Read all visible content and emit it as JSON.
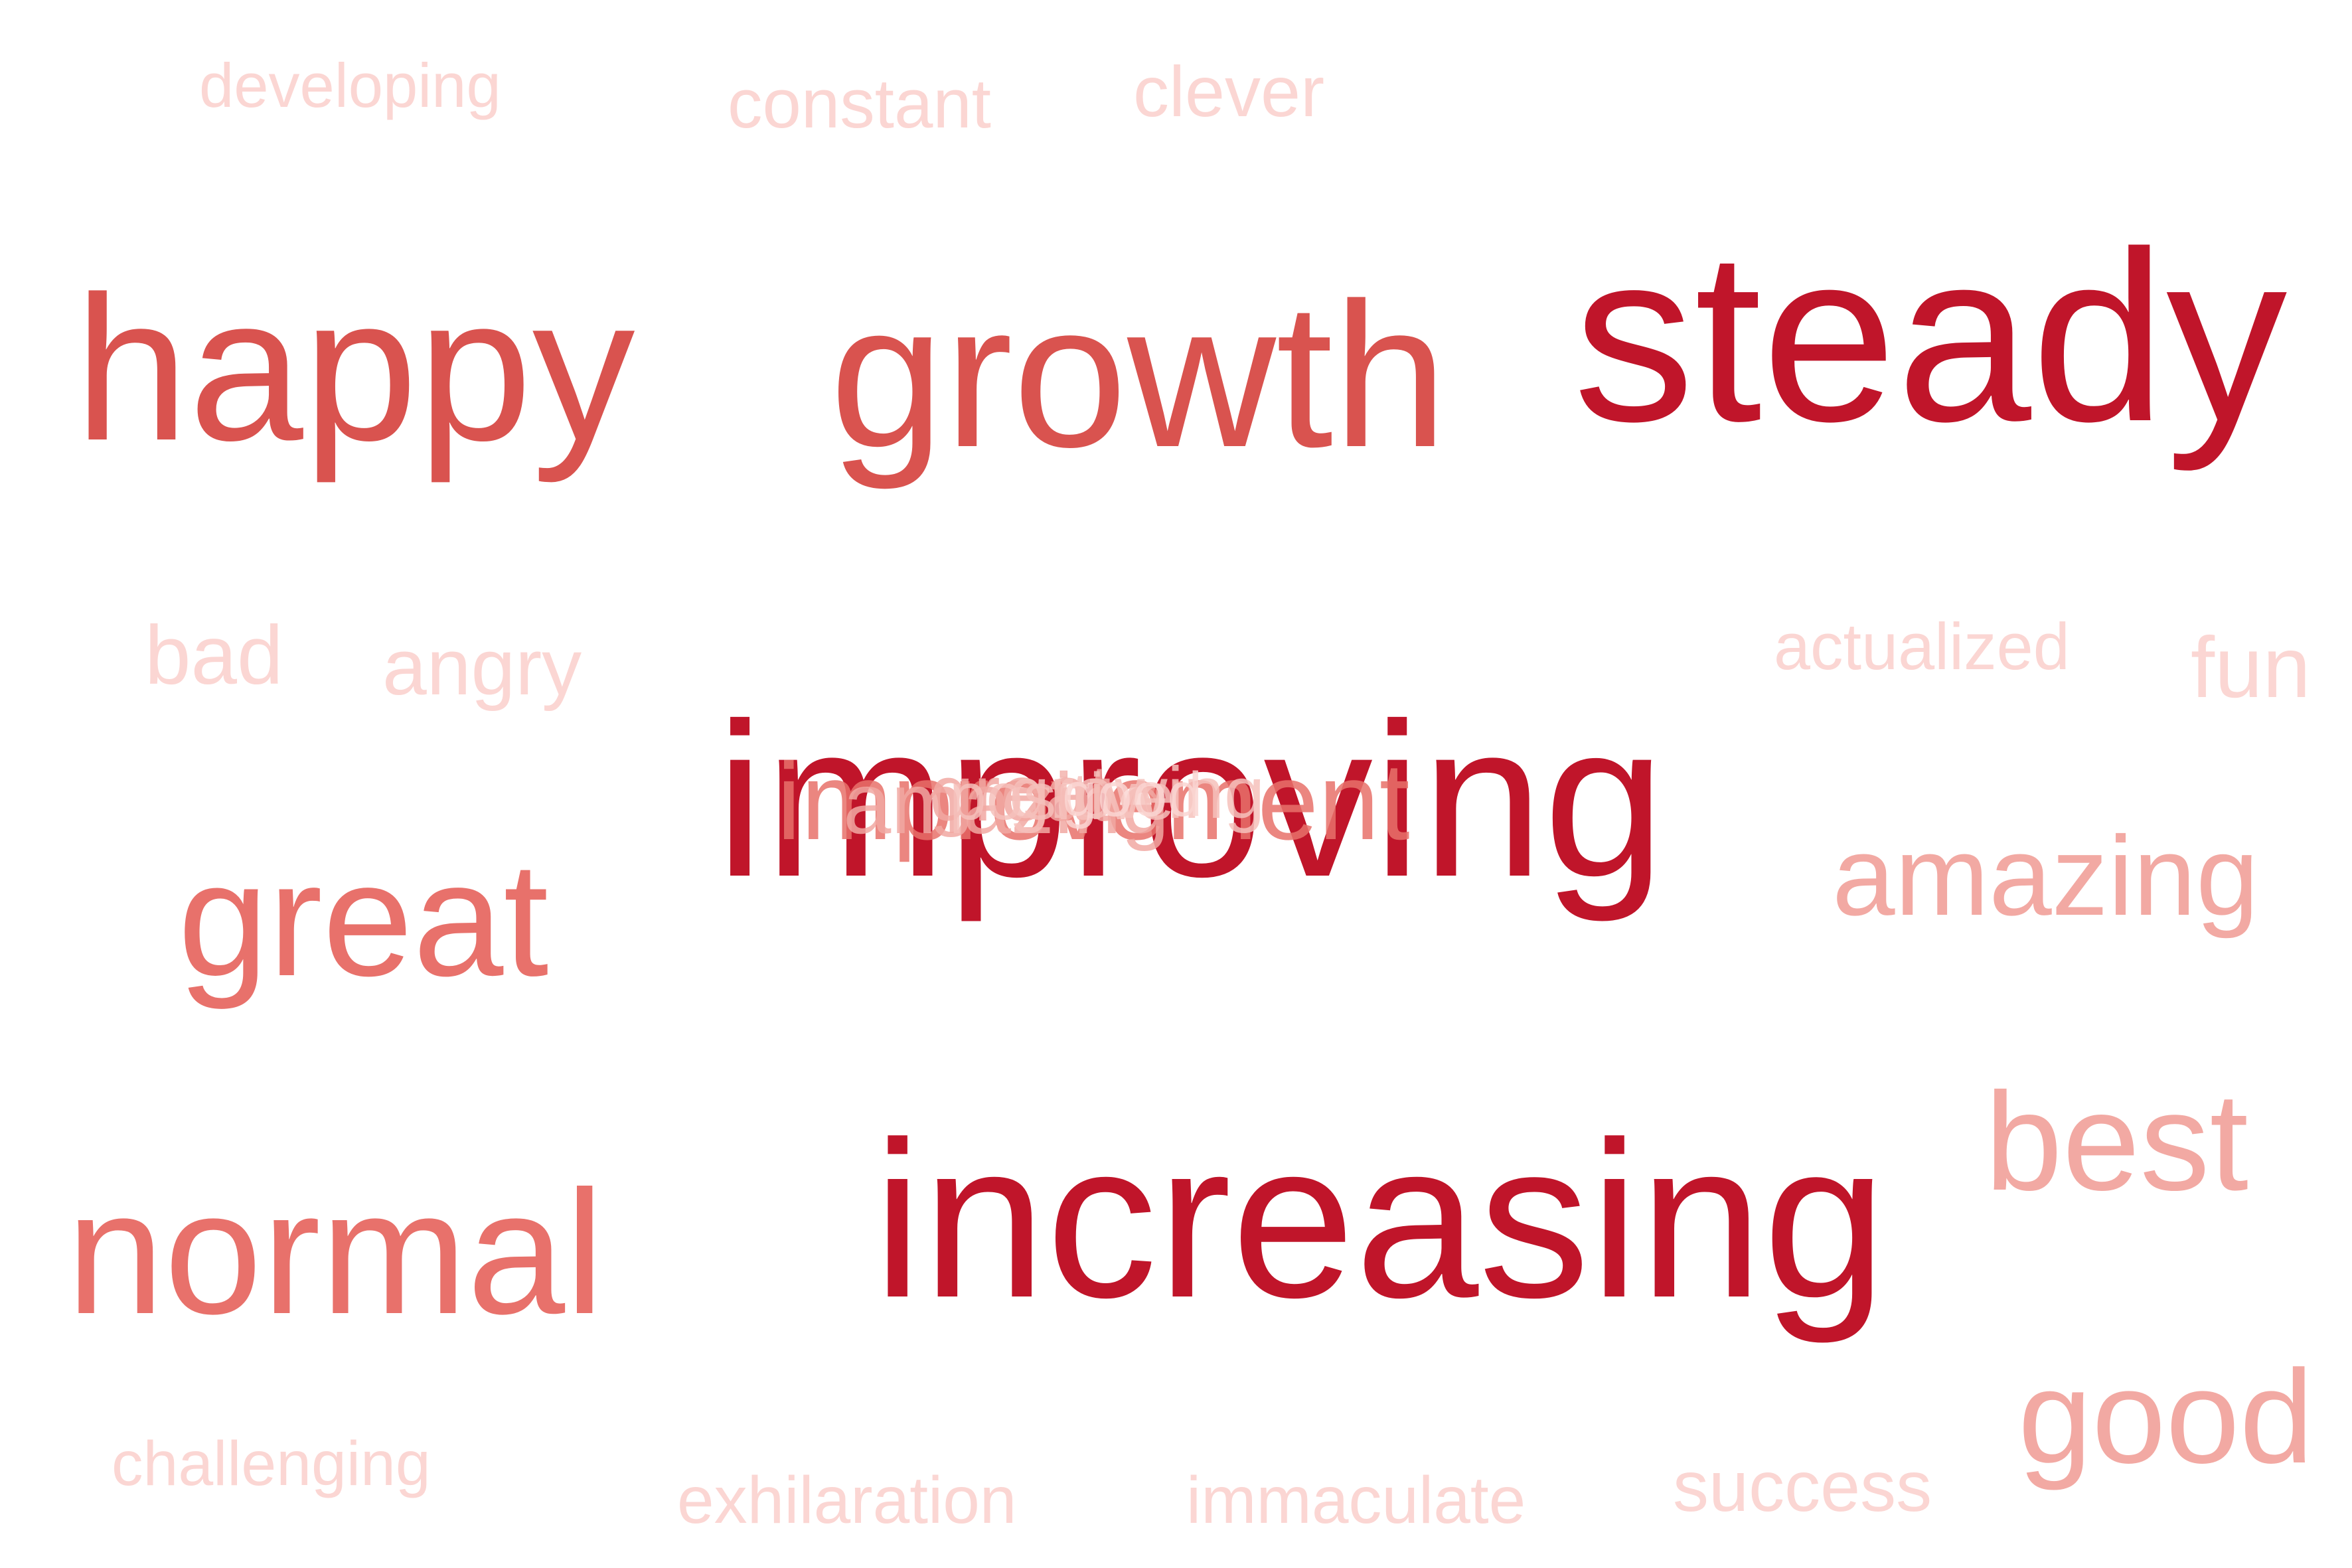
{
  "cloud": {
    "words": [
      {
        "text": "developing",
        "color": "#fbd6d3"
      },
      {
        "text": "constant",
        "color": "#fbd6d3"
      },
      {
        "text": "clever",
        "color": "#fbd6d3"
      },
      {
        "text": "happy",
        "color": "#d9534f"
      },
      {
        "text": "growth",
        "color": "#d9534f"
      },
      {
        "text": "steady",
        "color": "#c0152a"
      },
      {
        "text": "bad",
        "color": "#fbd6d3"
      },
      {
        "text": "angry",
        "color": "#fbd6d3"
      },
      {
        "text": "actualized",
        "color": "#fbd6d3"
      },
      {
        "text": "fun",
        "color": "#fbd6d3"
      },
      {
        "text": "improving",
        "color": "#c0152a"
      },
      {
        "text": "great",
        "color": "#e8716b"
      },
      {
        "text": "amazing",
        "color": "#f2a9a3"
      },
      {
        "text": "best",
        "color": "#f2a9a3"
      },
      {
        "text": "normal",
        "color": "#e8716b"
      },
      {
        "text": "increasing",
        "color": "#c0152a"
      },
      {
        "text": "good",
        "color": "#f2a9a3"
      },
      {
        "text": "challenging",
        "color": "#fbd6d3"
      },
      {
        "text": "exhilaration",
        "color": "#fbd6d3"
      },
      {
        "text": "immaculate",
        "color": "#fbd6d3"
      },
      {
        "text": "success",
        "color": "#fbd6d3"
      }
    ],
    "cluster_words": [
      {
        "text": "improvement",
        "color": "#e8716b"
      },
      {
        "text": "amazing",
        "color": "#f2a9a3"
      },
      {
        "text": "great",
        "color": "#f2a9a3"
      },
      {
        "text": "positive",
        "color": "#f6c1bc"
      },
      {
        "text": "growing",
        "color": "#f6c1bc"
      },
      {
        "text": "good",
        "color": "#fbd6d3"
      }
    ]
  }
}
